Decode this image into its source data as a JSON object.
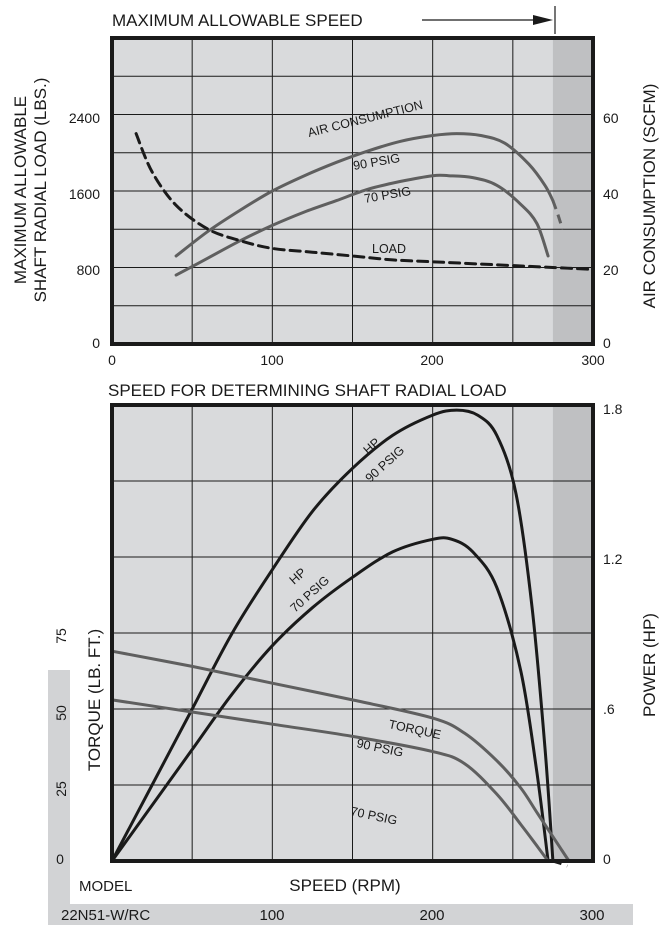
{
  "colors": {
    "plot_bg": "#d9dadc",
    "shade": "#bfc0c2",
    "frame": "#1a1a1a",
    "grid": "#1a1a1a",
    "air_curve": "#5f5f5f",
    "load_curve": "#1a1a1a",
    "hp_curve": "#1a1a1a",
    "torque_curve": "#5f5f5f",
    "side_band": "#d2d3d5"
  },
  "top_banner": {
    "label": "MAXIMUM ALLOWABLE SPEED"
  },
  "middle_title": "SPEED FOR DETERMINING SHAFT RADIAL LOAD",
  "chart_data": [
    {
      "type": "line",
      "ylabel_left": "MAXIMUM ALLOWABLE SHAFT RADIAL LOAD (LBS.)",
      "ylabel_left_lines": [
        "MAXIMUM ALLOWABLE",
        "SHAFT RADIAL LOAD (LBS.)"
      ],
      "ylabel_right": "AIR CONSUMPTION (SCFM)",
      "xlim": [
        0,
        300
      ],
      "ylim_left": [
        0,
        3200
      ],
      "ylim_right": [
        0,
        80
      ],
      "xticks": [
        "0",
        "100",
        "200",
        "300"
      ],
      "yticks_left": [
        "0",
        "800",
        "1600",
        "2400"
      ],
      "yticks_right": [
        "0",
        "20",
        "40",
        "60"
      ],
      "max_speed_region": [
        275,
        300
      ],
      "grid": true,
      "labels": {
        "air_title": "AIR CONSUMPTION",
        "air90": "90 PSIG",
        "air70": "70 PSIG",
        "load": "LOAD"
      },
      "series": [
        {
          "axis": "right",
          "style": "solid",
          "x": [
            40,
            60,
            80,
            100,
            120,
            140,
            160,
            180,
            200,
            215,
            230,
            245,
            260,
            270,
            275
          ],
          "y": [
            23,
            29.5,
            35,
            40,
            44,
            47.5,
            50.5,
            53,
            54.5,
            55,
            54.5,
            52.5,
            47,
            41.5,
            37.5
          ],
          "dashed_tail": {
            "x": [
              275,
              278,
              281
            ],
            "y": [
              37.5,
              34,
              30
            ]
          }
        },
        {
          "axis": "right",
          "style": "solid",
          "x": [
            40,
            60,
            80,
            100,
            120,
            140,
            160,
            180,
            200,
            210,
            225,
            240,
            255,
            265,
            272
          ],
          "y": [
            18,
            22.5,
            27,
            31,
            34.5,
            37.5,
            40.5,
            42.5,
            44,
            44,
            43.5,
            41.5,
            36.5,
            31.5,
            23
          ]
        },
        {
          "axis": "left",
          "style": "dashed",
          "x": [
            15,
            25,
            40,
            60,
            80,
            100,
            125,
            150,
            175,
            200,
            225,
            250,
            275,
            300
          ],
          "y": [
            2200,
            1800,
            1450,
            1200,
            1080,
            1000,
            960,
            920,
            880,
            860,
            840,
            820,
            800,
            780
          ]
        }
      ]
    },
    {
      "type": "line",
      "xlabel": "SPEED (RPM)",
      "ylabel_left": "TORQUE (LB. FT.)",
      "ylabel_right": "POWER (HP)",
      "xlim": [
        0,
        300
      ],
      "ylim_left": [
        0,
        150
      ],
      "ylim_right": [
        0,
        1.8
      ],
      "xticks": [
        "100",
        "200",
        "300"
      ],
      "yticks_left": [
        "0",
        "25",
        "50",
        "75"
      ],
      "yticks_right": [
        "0",
        ".6",
        "1.2",
        "1.8"
      ],
      "model_label": "MODEL",
      "model_name": "22N51-W/RC",
      "max_speed_region": [
        275,
        300
      ],
      "grid": true,
      "labels": {
        "hp90_a": "HP",
        "hp90_b": "90 PSIG",
        "hp70_a": "HP",
        "hp70_b": "70 PSIG",
        "tq90_a": "TORQUE",
        "tq90_b": "90 PSIG",
        "tq70": "70 PSIG"
      },
      "series": [
        {
          "axis": "right",
          "style": "solid",
          "x": [
            0,
            25,
            50,
            75,
            100,
            125,
            150,
            175,
            200,
            215,
            228,
            240,
            252,
            262,
            270,
            275
          ],
          "y": [
            0,
            0.3,
            0.6,
            0.9,
            1.15,
            1.38,
            1.55,
            1.68,
            1.76,
            1.78,
            1.76,
            1.68,
            1.45,
            1.0,
            0.45,
            0.0
          ],
          "dashed_tail": {
            "x": [
              275,
              280,
              284
            ],
            "y": [
              0.0,
              -0.01,
              -0.02
            ]
          }
        },
        {
          "axis": "right",
          "style": "solid",
          "x": [
            0,
            25,
            50,
            75,
            100,
            125,
            150,
            175,
            200,
            212,
            225,
            240,
            255,
            265,
            272
          ],
          "y": [
            0,
            0.22,
            0.44,
            0.66,
            0.85,
            1.0,
            1.12,
            1.22,
            1.27,
            1.27,
            1.22,
            1.08,
            0.75,
            0.35,
            0.0
          ]
        },
        {
          "axis": "left",
          "style": "solid",
          "x": [
            0,
            50,
            100,
            150,
            200,
            220,
            240,
            255,
            265,
            275,
            280,
            285
          ],
          "y": [
            69,
            64,
            58.5,
            53,
            47,
            42,
            33,
            24,
            16,
            8,
            4,
            0
          ]
        },
        {
          "axis": "left",
          "style": "solid",
          "x": [
            0,
            50,
            100,
            150,
            200,
            220,
            240,
            255,
            265,
            272
          ],
          "y": [
            53,
            49,
            45,
            41,
            36,
            32,
            22,
            12,
            5,
            0
          ]
        }
      ]
    }
  ]
}
